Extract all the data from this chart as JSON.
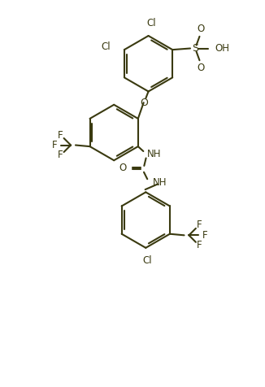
{
  "bg_color": "#ffffff",
  "line_color": "#3a3a10",
  "line_width": 1.5,
  "figsize": [
    3.26,
    4.76
  ],
  "dpi": 100,
  "font_size": 8.5,
  "xlim": [
    -1.0,
    9.0
  ],
  "ylim": [
    -0.5,
    13.5
  ]
}
